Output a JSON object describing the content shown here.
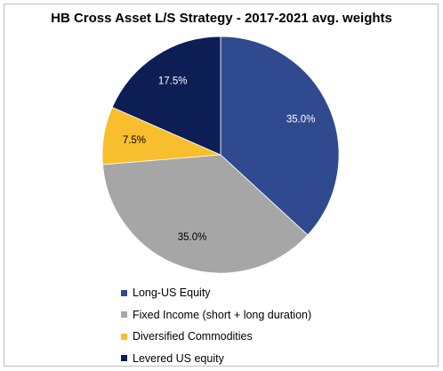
{
  "chart_data": {
    "type": "pie",
    "title": "HB Cross Asset L/S Strategy - 2017-2021 avg. weights",
    "categories": [
      "Long-US Equity",
      "Fixed Income (short  + long duration)",
      "Diversified Commodities",
      "Levered US equity"
    ],
    "values": [
      35.0,
      35.0,
      7.5,
      17.5
    ],
    "labels": [
      "35.0%",
      "35.0%",
      "7.5%",
      "17.5%"
    ],
    "colors": [
      "#2F4A8F",
      "#A6A6A6",
      "#F8BE2E",
      "#0D1E55"
    ],
    "label_colors": [
      "#ffffff",
      "#000000",
      "#000000",
      "#ffffff"
    ],
    "start_angle_deg": 0,
    "direction": "clockwise",
    "legend_position": "bottom"
  }
}
